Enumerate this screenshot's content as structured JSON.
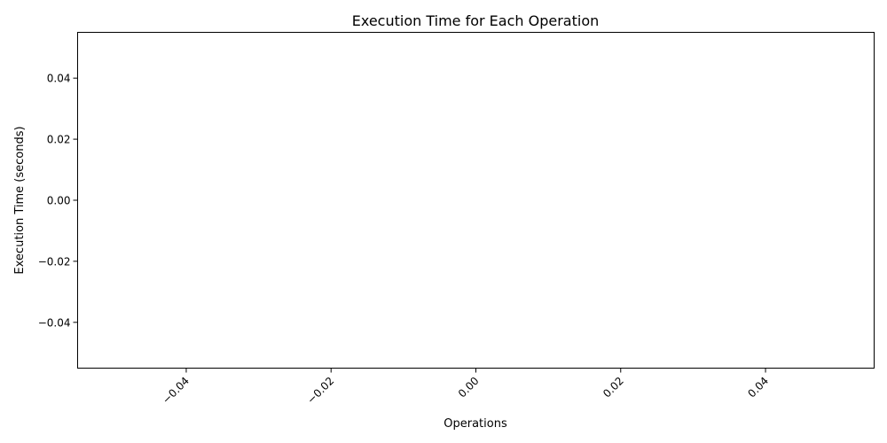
{
  "chart_data": {
    "type": "bar",
    "title": "Execution Time for Each Operation",
    "xlabel": "Operations",
    "ylabel": "Execution Time (seconds)",
    "categories": [],
    "values": [],
    "xlim": [
      -0.055,
      0.055
    ],
    "ylim": [
      -0.055,
      0.055
    ],
    "x_ticks": [
      -0.04,
      -0.02,
      0.0,
      0.02,
      0.04
    ],
    "x_tick_labels": [
      "−0.04",
      "−0.02",
      "0.00",
      "0.02",
      "0.04"
    ],
    "y_ticks": [
      0.04,
      0.02,
      0.0,
      -0.02,
      -0.04
    ],
    "y_tick_labels": [
      "0.04",
      "0.02",
      "0.00",
      "−0.02",
      "−0.04"
    ],
    "grid": false,
    "legend": "none"
  }
}
